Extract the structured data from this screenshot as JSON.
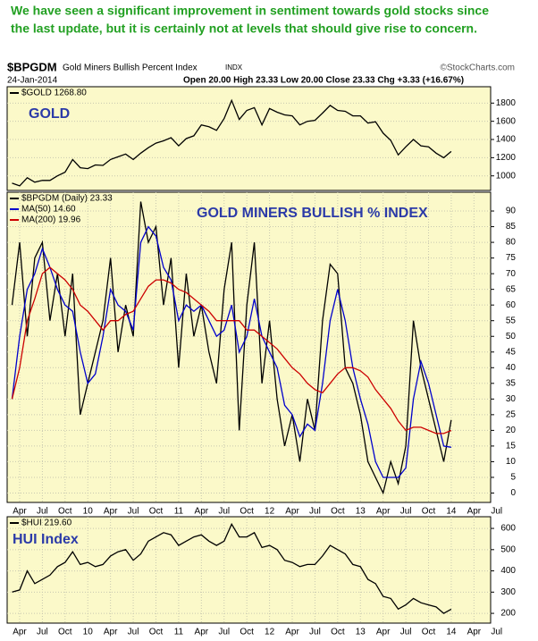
{
  "commentary": [
    "We have seen a significant improvement in sentiment towards gold stocks since",
    "the last update, but it is certainly not at levels that should give rise to concern."
  ],
  "header": {
    "symbol": "$BPGDM",
    "name": "Gold Miners Bullish Percent Index",
    "exchange": "INDX",
    "source": "©StockCharts.com",
    "date": "24-Jan-2014",
    "quote": "Open 20.00  High 23.33  Low 20.00  Close 23.33  Chg +3.33 (+16.67%)"
  },
  "chart_data": [
    {
      "type": "line",
      "annotation": "GOLD",
      "xlim": [
        -0.65,
        63.2
      ],
      "ylim": [
        840,
        1980
      ],
      "yticks": [
        1000,
        1200,
        1400,
        1600,
        1800
      ],
      "grid": true,
      "series": [
        {
          "name": "$GOLD 1268.80",
          "color": "#000000",
          "values": [
            920,
            890,
            980,
            930,
            950,
            950,
            1000,
            1040,
            1180,
            1090,
            1080,
            1120,
            1115,
            1180,
            1210,
            1240,
            1180,
            1250,
            1310,
            1360,
            1385,
            1420,
            1330,
            1410,
            1440,
            1560,
            1540,
            1500,
            1630,
            1830,
            1620,
            1720,
            1750,
            1560,
            1740,
            1700,
            1670,
            1660,
            1560,
            1600,
            1610,
            1690,
            1775,
            1720,
            1710,
            1660,
            1660,
            1580,
            1595,
            1470,
            1390,
            1230,
            1320,
            1400,
            1330,
            1320,
            1250,
            1200,
            1268.8
          ]
        }
      ]
    },
    {
      "type": "line",
      "annotation": "GOLD MINERS BULLISH % INDEX",
      "xlim": [
        -0.65,
        63.2
      ],
      "ylim": [
        -3,
        96
      ],
      "yticks": [
        0,
        5,
        10,
        15,
        20,
        25,
        30,
        35,
        40,
        45,
        50,
        55,
        60,
        65,
        70,
        75,
        80,
        85,
        90
      ],
      "grid": true,
      "xticks": [
        {
          "value": 1,
          "label": "Apr"
        },
        {
          "value": 4,
          "label": "Jul"
        },
        {
          "value": 7,
          "label": "Oct"
        },
        {
          "value": 10,
          "label": "10"
        },
        {
          "value": 13,
          "label": "Apr"
        },
        {
          "value": 16,
          "label": "Jul"
        },
        {
          "value": 19,
          "label": "Oct"
        },
        {
          "value": 22,
          "label": "11"
        },
        {
          "value": 25,
          "label": "Apr"
        },
        {
          "value": 28,
          "label": "Jul"
        },
        {
          "value": 31,
          "label": "Oct"
        },
        {
          "value": 34,
          "label": "12"
        },
        {
          "value": 37,
          "label": "Apr"
        },
        {
          "value": 40,
          "label": "Jul"
        },
        {
          "value": 43,
          "label": "Oct"
        },
        {
          "value": 46,
          "label": "13"
        },
        {
          "value": 49,
          "label": "Apr"
        },
        {
          "value": 52,
          "label": "Jul"
        },
        {
          "value": 55,
          "label": "Oct"
        },
        {
          "value": 58,
          "label": "14"
        },
        {
          "value": 61,
          "label": "Apr"
        },
        {
          "value": 64,
          "label": "Jul"
        }
      ],
      "series": [
        {
          "name": "$BPGDM (Daily) 23.33",
          "color": "#000000",
          "values": [
            60,
            80,
            50,
            75,
            80,
            55,
            70,
            50,
            70,
            25,
            35,
            45,
            55,
            75,
            45,
            60,
            50,
            93,
            80,
            85,
            60,
            75,
            40,
            70,
            50,
            60,
            45,
            35,
            65,
            80,
            20,
            60,
            80,
            35,
            55,
            30,
            15,
            25,
            10,
            30,
            20,
            55,
            73,
            70,
            40,
            35,
            25,
            10,
            5,
            0,
            10,
            3,
            15,
            55,
            40,
            30,
            20,
            10,
            23.33
          ]
        },
        {
          "name": "MA(50) 14.60",
          "color": "#0000cc",
          "values": [
            30,
            50,
            65,
            70,
            78,
            72,
            65,
            60,
            58,
            45,
            35,
            38,
            50,
            65,
            60,
            58,
            52,
            80,
            85,
            82,
            72,
            68,
            55,
            60,
            58,
            60,
            55,
            50,
            52,
            60,
            45,
            50,
            62,
            50,
            45,
            40,
            28,
            25,
            18,
            22,
            20,
            35,
            55,
            65,
            55,
            40,
            30,
            22,
            10,
            5,
            5,
            5,
            8,
            30,
            42,
            35,
            25,
            15,
            14.6
          ]
        },
        {
          "name": "MA(200) 19.96",
          "color": "#cc0000",
          "values": [
            30,
            40,
            55,
            62,
            70,
            72,
            70,
            68,
            65,
            60,
            58,
            55,
            52,
            55,
            55,
            57,
            58,
            62,
            66,
            68,
            68,
            67,
            65,
            64,
            62,
            60,
            58,
            55,
            55,
            55,
            55,
            52,
            52,
            50,
            48,
            46,
            43,
            40,
            38,
            35,
            33,
            32,
            35,
            38,
            40,
            40,
            39,
            37,
            33,
            30,
            27,
            23,
            20,
            21,
            21,
            20,
            19,
            19,
            19.96
          ]
        }
      ]
    },
    {
      "type": "line",
      "annotation": "HUI Index",
      "xlim": [
        -0.65,
        63.2
      ],
      "ylim": [
        154,
        655
      ],
      "yticks": [
        200,
        300,
        400,
        500,
        600
      ],
      "grid": true,
      "xticks": [
        {
          "value": 1,
          "label": "Apr"
        },
        {
          "value": 4,
          "label": "Jul"
        },
        {
          "value": 7,
          "label": "Oct"
        },
        {
          "value": 10,
          "label": "10"
        },
        {
          "value": 13,
          "label": "Apr"
        },
        {
          "value": 16,
          "label": "Jul"
        },
        {
          "value": 19,
          "label": "Oct"
        },
        {
          "value": 22,
          "label": "11"
        },
        {
          "value": 25,
          "label": "Apr"
        },
        {
          "value": 28,
          "label": "Jul"
        },
        {
          "value": 31,
          "label": "Oct"
        },
        {
          "value": 34,
          "label": "12"
        },
        {
          "value": 37,
          "label": "Apr"
        },
        {
          "value": 40,
          "label": "Jul"
        },
        {
          "value": 43,
          "label": "Oct"
        },
        {
          "value": 46,
          "label": "13"
        },
        {
          "value": 49,
          "label": "Apr"
        },
        {
          "value": 52,
          "label": "Jul"
        },
        {
          "value": 55,
          "label": "Oct"
        },
        {
          "value": 58,
          "label": "14"
        },
        {
          "value": 61,
          "label": "Apr"
        },
        {
          "value": 64,
          "label": "Jul"
        }
      ],
      "series": [
        {
          "name": "$HUI 219.60",
          "color": "#000000",
          "values": [
            300,
            310,
            400,
            340,
            360,
            380,
            420,
            440,
            490,
            430,
            440,
            420,
            430,
            470,
            490,
            500,
            450,
            480,
            540,
            560,
            580,
            570,
            520,
            540,
            560,
            570,
            540,
            520,
            540,
            620,
            560,
            560,
            580,
            510,
            520,
            500,
            450,
            440,
            420,
            430,
            430,
            470,
            520,
            500,
            480,
            430,
            420,
            360,
            340,
            280,
            270,
            220,
            240,
            270,
            250,
            240,
            230,
            200,
            219.6
          ]
        }
      ]
    }
  ]
}
